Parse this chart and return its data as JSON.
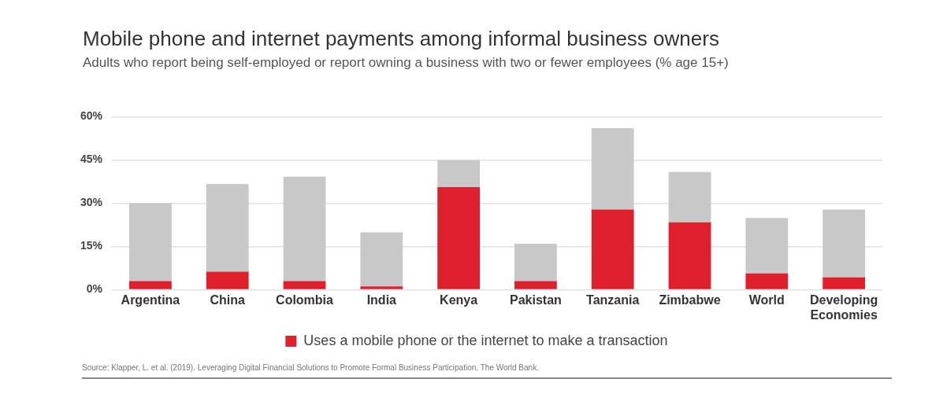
{
  "chart_data": {
    "type": "bar",
    "title": "Mobile phone and internet payments among informal business owners",
    "subtitle": "Adults who report being self-employed or report owning a business with two or fewer employees (% age 15+)",
    "categories": [
      "Argentina",
      "China",
      "Colombia",
      "India",
      "Kenya",
      "Pakistan",
      "Tanzania",
      "Zimbabwe",
      "World",
      "Developing Economies"
    ],
    "series": [
      {
        "name": "Uses a mobile phone or the internet to make a transaction",
        "color": "#e01f2d",
        "values": [
          3,
          6.3,
          3,
          1.2,
          35.6,
          3,
          27.8,
          23.4,
          5.7,
          4.3
        ]
      },
      {
        "color": "#c8c8c8",
        "values": [
          27,
          30.4,
          36.2,
          18.7,
          9.3,
          13,
          28.2,
          17.4,
          19.2,
          23.5
        ]
      }
    ],
    "stacked": true,
    "ylim": [
      0,
      60
    ],
    "yticks": [
      {
        "value": 0,
        "label": "0%"
      },
      {
        "value": 15,
        "label": "15%"
      },
      {
        "value": 30,
        "label": "30%"
      },
      {
        "value": 45,
        "label": "45%"
      },
      {
        "value": 60,
        "label": "60%"
      }
    ],
    "grid": "y",
    "legend": "bottom",
    "annotations": [
      "Source: Klapper, L. et al. (2019). Leveraging Digital Financial Solutions to Promote Formal Business Participation. The World Bank."
    ]
  }
}
